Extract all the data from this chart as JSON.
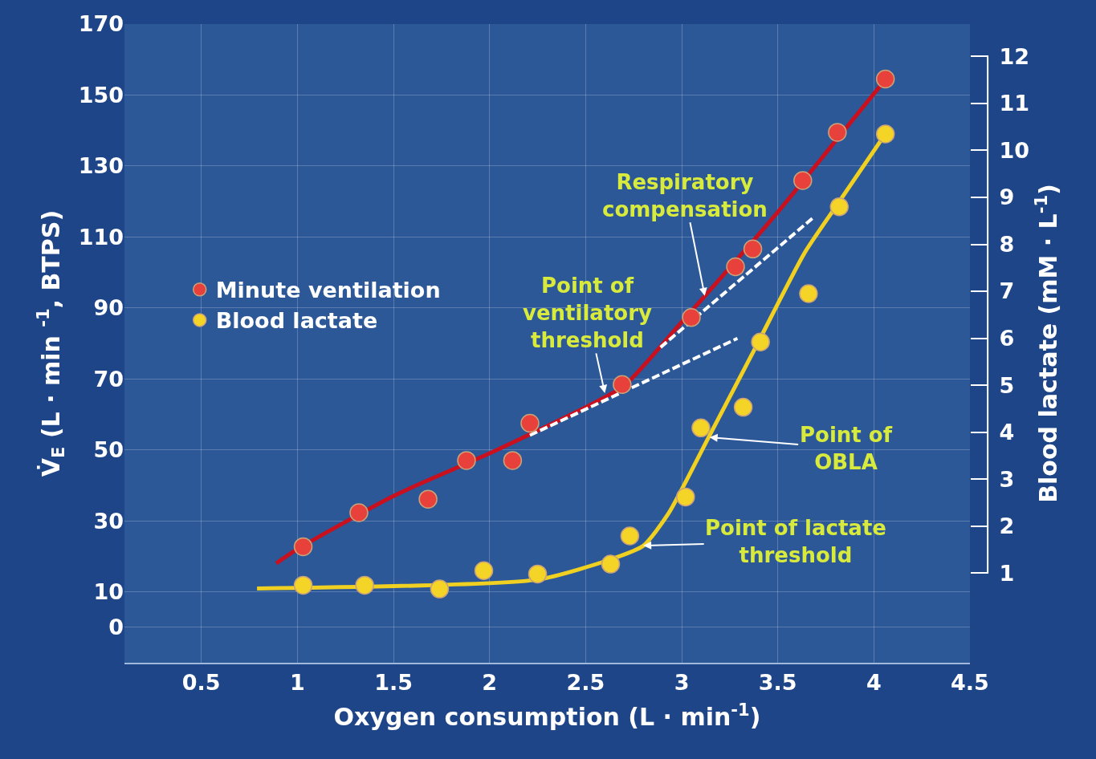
{
  "chart_data": {
    "type": "scatter",
    "xlabel": "Oxygen consumption (L · min$^{-1}$)",
    "ylabel": "V̇$_{E}$ (L · min $^{-1}$, BTPS)",
    "y2label": "Blood lactate (mM · L$^{-1}$)",
    "xlim": [
      0.1,
      4.5
    ],
    "xticks": [
      0.5,
      1.0,
      1.5,
      2.0,
      2.5,
      3.0,
      3.5,
      4.0,
      4.5
    ],
    "ylim": [
      -10,
      170
    ],
    "yticks": [
      0,
      10,
      30,
      50,
      70,
      90,
      110,
      130,
      150,
      170
    ],
    "y2lim": [
      -0.91,
      12.69
    ],
    "y2ticks": [
      1,
      2,
      3,
      4,
      5,
      6,
      7,
      8,
      9,
      10,
      11,
      12
    ],
    "grid": true,
    "legend": "left",
    "marker": "circle",
    "series": [
      {
        "name": "Minute ventilation",
        "color": "#e8403a",
        "x": [
          1.03,
          1.32,
          1.68,
          1.88,
          2.12,
          2.21,
          2.69,
          3.05,
          3.28,
          3.37,
          3.63,
          3.81,
          4.06
        ],
        "values": [
          22.7,
          32.3,
          36.1,
          47.0,
          47.0,
          57.5,
          68.4,
          87.3,
          101.6,
          106.6,
          125.9,
          139.5,
          154.5
        ]
      },
      {
        "name": "Blood lactate",
        "axis": "y2",
        "color": "#f5d428",
        "x": [
          1.03,
          1.35,
          1.74,
          1.97,
          2.25,
          2.63,
          2.73,
          3.02,
          3.1,
          3.32,
          3.41,
          3.66,
          3.82,
          4.06
        ],
        "values": [
          0.74,
          0.74,
          0.66,
          1.05,
          0.98,
          1.19,
          1.79,
          2.62,
          4.09,
          4.53,
          5.92,
          6.95,
          8.8,
          10.35
        ]
      },
      {
        "type": "line",
        "marker": "none",
        "color": "#c8101e",
        "x": [
          0.89,
          1.0,
          1.5,
          2.0,
          2.5,
          2.7,
          3.0,
          3.5,
          3.8,
          4.04
        ],
        "values": [
          18,
          22,
          37,
          49,
          62,
          68,
          86,
          117,
          137,
          153
        ]
      },
      {
        "type": "line",
        "marker": "none",
        "axis": "y2",
        "color": "#f0d020",
        "x": [
          0.79,
          2.25,
          2.63,
          2.8,
          2.93,
          3.14,
          3.39,
          3.64,
          3.81,
          4.06
        ],
        "values": [
          0.67,
          0.86,
          1.29,
          1.58,
          2.26,
          3.89,
          5.85,
          7.82,
          8.85,
          10.35
        ]
      },
      {
        "type": "line",
        "marker": "none",
        "line_style": "dashed",
        "color": "#ffffff",
        "x": [
          2.21,
          3.29
        ],
        "values": [
          54.1,
          81.4
        ]
      },
      {
        "type": "line",
        "marker": "none",
        "line_style": "dashed",
        "color": "#ffffff",
        "x": [
          2.89,
          3.69
        ],
        "values": [
          78.9,
          115.7
        ]
      }
    ],
    "annotations": [
      {
        "text": "Respiratory\ncompensation",
        "x": 3.12,
        "y": 93.4
      },
      {
        "text": "Point of\nventilatory\nthreshold",
        "x": 2.6,
        "y": 66
      },
      "Point of\nOBLA",
      {
        "text": "Point of lactate\nthreshold",
        "x": 2.8,
        "y": 23.0
      }
    ]
  }
}
